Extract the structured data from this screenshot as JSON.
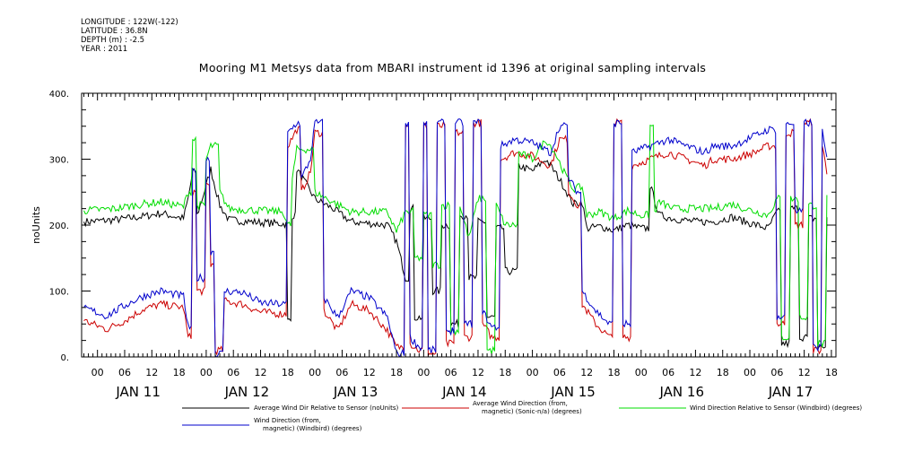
{
  "header": {
    "meta_lines": [
      "LONGITUDE : 122W(-122)",
      "LATITUDE : 36.8N",
      "DEPTH (m) : -2.5",
      "YEAR : 2011"
    ],
    "title": "Mooring M1 Metsys data from MBARI instrument id 1396 at original sampling intervals"
  },
  "chart_data": {
    "type": "line",
    "title": "Mooring M1 Metsys data from MBARI instrument id 1396 at original sampling intervals",
    "xlabel": "",
    "ylabel": "noUnits",
    "ylim": [
      0,
      400
    ],
    "y_ticks": [
      "0.",
      "100.",
      "200.",
      "300.",
      "400."
    ],
    "x_hour_ticks": [
      "00",
      "06",
      "12",
      "18",
      "00",
      "06",
      "12",
      "18",
      "00",
      "06",
      "12",
      "18",
      "00",
      "06",
      "12",
      "18",
      "00",
      "06",
      "12",
      "18",
      "00",
      "06",
      "12",
      "18",
      "00",
      "06",
      "12",
      "18"
    ],
    "x_day_labels": [
      "JAN 11",
      "JAN 12",
      "JAN 13",
      "JAN 14",
      "JAN 15",
      "JAN 16",
      "JAN 17"
    ],
    "x_range_hours": [
      -3.5,
      163
    ],
    "grid": false,
    "legend_placement": "bottom",
    "series": [
      {
        "name": "Average Wind Dir Relative to Sensor (noUnits)",
        "color": "#000000",
        "points": [
          [
            -3,
            205
          ],
          [
            4,
            208
          ],
          [
            10,
            213
          ],
          [
            14,
            218
          ],
          [
            19,
            210
          ],
          [
            20,
            240
          ],
          [
            21,
            280
          ],
          [
            22,
            215
          ],
          [
            24,
            260
          ],
          [
            25,
            285
          ],
          [
            27,
            230
          ],
          [
            29,
            208
          ],
          [
            36,
            204
          ],
          [
            41,
            202
          ],
          [
            42,
            55
          ],
          [
            43,
            215
          ],
          [
            44,
            285
          ],
          [
            48,
            240
          ],
          [
            52,
            225
          ],
          [
            56,
            205
          ],
          [
            64,
            200
          ],
          [
            66,
            175
          ],
          [
            68,
            120
          ],
          [
            69,
            225
          ],
          [
            70,
            60
          ],
          [
            72,
            210
          ],
          [
            74,
            100
          ],
          [
            76,
            200
          ],
          [
            78,
            50
          ],
          [
            80,
            215
          ],
          [
            82,
            120
          ],
          [
            84,
            205
          ],
          [
            86,
            60
          ],
          [
            88,
            195
          ],
          [
            90,
            130
          ],
          [
            93,
            290
          ],
          [
            96,
            282
          ],
          [
            99,
            300
          ],
          [
            101,
            280
          ],
          [
            103,
            258
          ],
          [
            105,
            232
          ],
          [
            107,
            235
          ],
          [
            108,
            195
          ],
          [
            111,
            198
          ],
          [
            114,
            192
          ],
          [
            117,
            200
          ],
          [
            120,
            195
          ],
          [
            122,
            260
          ],
          [
            124,
            215
          ],
          [
            127,
            210
          ],
          [
            132,
            205
          ],
          [
            136,
            205
          ],
          [
            140,
            212
          ],
          [
            143,
            205
          ],
          [
            148,
            195
          ],
          [
            150,
            220
          ],
          [
            151,
            20
          ],
          [
            153,
            225
          ],
          [
            155,
            30
          ],
          [
            157,
            210
          ],
          [
            159,
            15
          ],
          [
            161,
            215
          ]
        ]
      },
      {
        "name": "Average Wind Direction (from, magnetic) (Sonic-n/a) (degrees)",
        "color": "#cc0000",
        "points": [
          [
            -3,
            55
          ],
          [
            2,
            42
          ],
          [
            6,
            55
          ],
          [
            10,
            72
          ],
          [
            14,
            80
          ],
          [
            19,
            75
          ],
          [
            20,
            30
          ],
          [
            21,
            250
          ],
          [
            22,
            100
          ],
          [
            24,
            260
          ],
          [
            25,
            140
          ],
          [
            26,
            10
          ],
          [
            28,
            85
          ],
          [
            32,
            80
          ],
          [
            36,
            68
          ],
          [
            41,
            65
          ],
          [
            42,
            320
          ],
          [
            44,
            345
          ],
          [
            45,
            250
          ],
          [
            47,
            280
          ],
          [
            48,
            340
          ],
          [
            50,
            70
          ],
          [
            53,
            40
          ],
          [
            56,
            80
          ],
          [
            60,
            70
          ],
          [
            64,
            40
          ],
          [
            66,
            15
          ],
          [
            68,
            355
          ],
          [
            69,
            20
          ],
          [
            71,
            10
          ],
          [
            72,
            350
          ],
          [
            73,
            5
          ],
          [
            75,
            350
          ],
          [
            77,
            20
          ],
          [
            79,
            340
          ],
          [
            81,
            30
          ],
          [
            83,
            355
          ],
          [
            85,
            50
          ],
          [
            87,
            30
          ],
          [
            89,
            300
          ],
          [
            92,
            310
          ],
          [
            96,
            305
          ],
          [
            100,
            290
          ],
          [
            102,
            330
          ],
          [
            104,
            250
          ],
          [
            106,
            230
          ],
          [
            107,
            80
          ],
          [
            110,
            50
          ],
          [
            113,
            30
          ],
          [
            114,
            355
          ],
          [
            116,
            30
          ],
          [
            118,
            290
          ],
          [
            122,
            300
          ],
          [
            126,
            310
          ],
          [
            130,
            300
          ],
          [
            134,
            290
          ],
          [
            136,
            300
          ],
          [
            140,
            300
          ],
          [
            145,
            310
          ],
          [
            148,
            320
          ],
          [
            150,
            50
          ],
          [
            152,
            340
          ],
          [
            154,
            200
          ],
          [
            156,
            355
          ],
          [
            158,
            10
          ],
          [
            160,
            320
          ],
          [
            161,
            280
          ]
        ]
      },
      {
        "name": "Wind Direction Relative to Sensor (Windbird) (degrees)",
        "color": "#00dd00",
        "points": [
          [
            -3,
            222
          ],
          [
            4,
            225
          ],
          [
            10,
            232
          ],
          [
            14,
            235
          ],
          [
            19,
            228
          ],
          [
            20,
            250
          ],
          [
            21,
            330
          ],
          [
            22,
            230
          ],
          [
            24,
            300
          ],
          [
            25,
            320
          ],
          [
            27,
            250
          ],
          [
            29,
            225
          ],
          [
            36,
            222
          ],
          [
            41,
            220
          ],
          [
            42,
            200
          ],
          [
            43,
            270
          ],
          [
            44,
            315
          ],
          [
            48,
            250
          ],
          [
            52,
            235
          ],
          [
            56,
            220
          ],
          [
            64,
            220
          ],
          [
            66,
            190
          ],
          [
            68,
            220
          ],
          [
            70,
            150
          ],
          [
            72,
            215
          ],
          [
            74,
            140
          ],
          [
            76,
            230
          ],
          [
            78,
            40
          ],
          [
            80,
            230
          ],
          [
            82,
            180
          ],
          [
            84,
            240
          ],
          [
            86,
            10
          ],
          [
            88,
            230
          ],
          [
            90,
            200
          ],
          [
            93,
            310
          ],
          [
            96,
            300
          ],
          [
            99,
            330
          ],
          [
            101,
            310
          ],
          [
            103,
            280
          ],
          [
            105,
            255
          ],
          [
            107,
            258
          ],
          [
            108,
            215
          ],
          [
            111,
            220
          ],
          [
            114,
            210
          ],
          [
            117,
            222
          ],
          [
            120,
            215
          ],
          [
            122,
            350
          ],
          [
            123,
            220
          ],
          [
            124,
            235
          ],
          [
            127,
            225
          ],
          [
            132,
            225
          ],
          [
            136,
            225
          ],
          [
            140,
            232
          ],
          [
            143,
            225
          ],
          [
            148,
            215
          ],
          [
            150,
            240
          ],
          [
            151,
            30
          ],
          [
            153,
            240
          ],
          [
            155,
            60
          ],
          [
            157,
            230
          ],
          [
            159,
            20
          ],
          [
            161,
            240
          ]
        ]
      },
      {
        "name": "Wind Direction (from, magnetic) (Windbird) (degrees)",
        "color": "#0000cc",
        "points": [
          [
            -3,
            75
          ],
          [
            2,
            62
          ],
          [
            6,
            78
          ],
          [
            10,
            92
          ],
          [
            14,
            100
          ],
          [
            19,
            92
          ],
          [
            20,
            45
          ],
          [
            21,
            280
          ],
          [
            22,
            120
          ],
          [
            24,
            300
          ],
          [
            25,
            160
          ],
          [
            26,
            5
          ],
          [
            28,
            100
          ],
          [
            32,
            98
          ],
          [
            36,
            82
          ],
          [
            41,
            80
          ],
          [
            42,
            340
          ],
          [
            44,
            355
          ],
          [
            45,
            270
          ],
          [
            47,
            300
          ],
          [
            48,
            355
          ],
          [
            50,
            90
          ],
          [
            53,
            60
          ],
          [
            56,
            100
          ],
          [
            60,
            90
          ],
          [
            64,
            60
          ],
          [
            66,
            5
          ],
          [
            68,
            355
          ],
          [
            69,
            30
          ],
          [
            71,
            15
          ],
          [
            72,
            355
          ],
          [
            73,
            10
          ],
          [
            75,
            355
          ],
          [
            77,
            40
          ],
          [
            79,
            355
          ],
          [
            81,
            50
          ],
          [
            83,
            355
          ],
          [
            85,
            70
          ],
          [
            87,
            45
          ],
          [
            89,
            320
          ],
          [
            92,
            330
          ],
          [
            96,
            325
          ],
          [
            100,
            310
          ],
          [
            102,
            350
          ],
          [
            104,
            270
          ],
          [
            106,
            250
          ],
          [
            107,
            100
          ],
          [
            110,
            70
          ],
          [
            113,
            50
          ],
          [
            114,
            355
          ],
          [
            116,
            50
          ],
          [
            118,
            310
          ],
          [
            122,
            320
          ],
          [
            126,
            330
          ],
          [
            130,
            320
          ],
          [
            134,
            310
          ],
          [
            136,
            320
          ],
          [
            140,
            320
          ],
          [
            145,
            335
          ],
          [
            148,
            345
          ],
          [
            150,
            60
          ],
          [
            152,
            355
          ],
          [
            154,
            220
          ],
          [
            156,
            355
          ],
          [
            158,
            15
          ],
          [
            160,
            340
          ],
          [
            161,
            300
          ]
        ]
      }
    ]
  }
}
